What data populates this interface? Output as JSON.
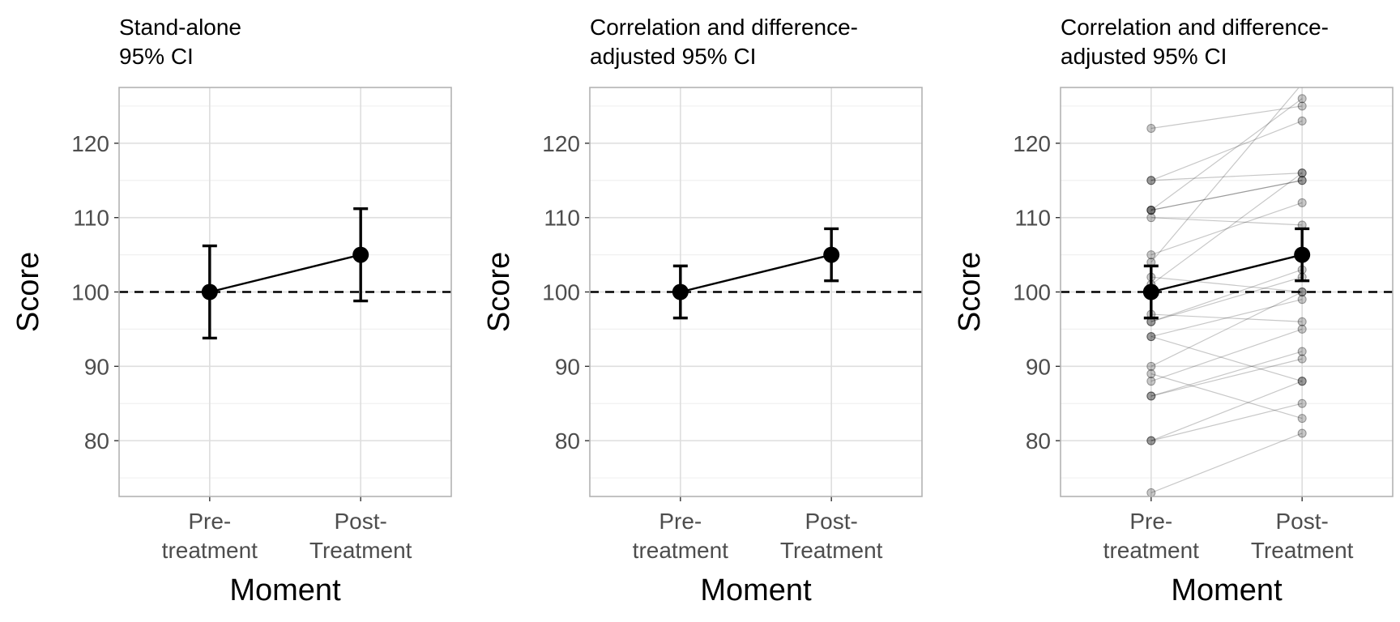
{
  "chart_data": [
    {
      "type": "line",
      "title_lines": [
        "Stand-alone",
        "95% CI"
      ],
      "xlabel": "Moment",
      "ylabel": "Score",
      "categories": [
        [
          "Pre-",
          "treatment"
        ],
        [
          "Post-",
          "Treatment"
        ]
      ],
      "yticks": [
        80,
        90,
        100,
        110,
        120
      ],
      "ylim": [
        72.5,
        127.5
      ],
      "reference_line": 100,
      "series": [
        {
          "means": [
            100,
            105
          ],
          "ci_low": [
            93.8,
            98.8
          ],
          "ci_high": [
            106.2,
            111.2
          ]
        }
      ],
      "individuals": []
    },
    {
      "type": "line",
      "title_lines": [
        "Correlation and difference-",
        "adjusted 95% CI"
      ],
      "xlabel": "Moment",
      "ylabel": "Score",
      "categories": [
        [
          "Pre-",
          "treatment"
        ],
        [
          "Post-",
          "Treatment"
        ]
      ],
      "yticks": [
        80,
        90,
        100,
        110,
        120
      ],
      "ylim": [
        72.5,
        127.5
      ],
      "reference_line": 100,
      "series": [
        {
          "means": [
            100,
            105
          ],
          "ci_low": [
            96.5,
            101.5
          ],
          "ci_high": [
            103.5,
            108.5
          ]
        }
      ],
      "individuals": []
    },
    {
      "type": "line",
      "title_lines": [
        "Correlation and difference-",
        "adjusted 95% CI"
      ],
      "xlabel": "Moment",
      "ylabel": "Score",
      "categories": [
        [
          "Pre-",
          "treatment"
        ],
        [
          "Post-",
          "Treatment"
        ]
      ],
      "yticks": [
        80,
        90,
        100,
        110,
        120
      ],
      "ylim": [
        72.5,
        127.5
      ],
      "reference_line": 100,
      "series": [
        {
          "means": [
            100,
            105
          ],
          "ci_low": [
            96.5,
            101.5
          ],
          "ci_high": [
            103.5,
            108.5
          ]
        }
      ],
      "individuals": [
        [
          122,
          125
        ],
        [
          115,
          123
        ],
        [
          115,
          116
        ],
        [
          111,
          115
        ],
        [
          111,
          115
        ],
        [
          111,
          126
        ],
        [
          110,
          109
        ],
        [
          105,
          112
        ],
        [
          104,
          128
        ],
        [
          102,
          100
        ],
        [
          101,
          116
        ],
        [
          97,
          96
        ],
        [
          96,
          102
        ],
        [
          96,
          103
        ],
        [
          94,
          88
        ],
        [
          94,
          99
        ],
        [
          90,
          100
        ],
        [
          89,
          83
        ],
        [
          88,
          95
        ],
        [
          86,
          91
        ],
        [
          86,
          92
        ],
        [
          80,
          88
        ],
        [
          80,
          85
        ],
        [
          73,
          81
        ]
      ]
    }
  ]
}
